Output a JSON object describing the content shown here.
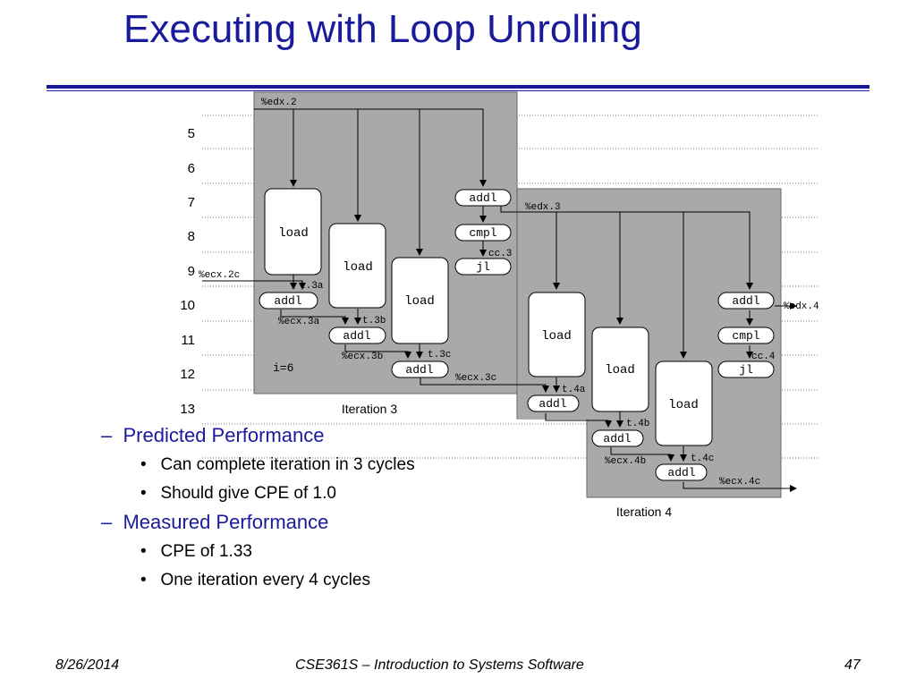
{
  "slide": {
    "title": "Executing with Loop Unrolling",
    "footer_date": "8/26/2014",
    "footer_course": "CSE361S – Introduction to Systems Software",
    "footer_page": "47"
  },
  "diagram": {
    "cycles": [
      "5",
      "6",
      "7",
      "8",
      "9",
      "10",
      "11",
      "12",
      "13"
    ],
    "iteration3": {
      "caption": "Iteration 3",
      "reg_in": "%edx.2",
      "loads": [
        "load",
        "load",
        "load"
      ],
      "addl_ctrl": "addl",
      "cmpl": "cmpl",
      "jl": "jl",
      "cc": "cc.3",
      "ecx_in": "%ecx.2c",
      "t_a": "t.3a",
      "t_b": "t.3b",
      "t_c": "t.3c",
      "adds": [
        "addl",
        "addl",
        "addl"
      ],
      "ecx_a": "%ecx.3a",
      "ecx_b": "%ecx.3b",
      "ecx_c": "%ecx.3c",
      "index": "i=6"
    },
    "iteration4": {
      "caption": "Iteration 4",
      "reg_in": "%edx.3",
      "reg_out": "%edx.4",
      "loads": [
        "load",
        "load",
        "load"
      ],
      "addl_ctrl": "addl",
      "cmpl": "cmpl",
      "jl": "jl",
      "cc": "cc.4",
      "t_a": "t.4a",
      "t_b": "t.4b",
      "t_c": "t.4c",
      "adds": [
        "addl",
        "addl",
        "addl"
      ],
      "ecx_b": "%ecx.4b",
      "ecx_c": "%ecx.4c"
    }
  },
  "bullets": [
    {
      "level": 1,
      "marker": "–",
      "text": "Predicted Performance"
    },
    {
      "level": 2,
      "marker": "•",
      "text": "Can complete iteration in 3 cycles"
    },
    {
      "level": 2,
      "marker": "•",
      "text": "Should give CPE of 1.0"
    },
    {
      "level": 1,
      "marker": "–",
      "text": "Measured Performance"
    },
    {
      "level": 2,
      "marker": "•",
      "text": "CPE of 1.33"
    },
    {
      "level": 2,
      "marker": "•",
      "text": "One iteration every 4 cycles"
    }
  ]
}
